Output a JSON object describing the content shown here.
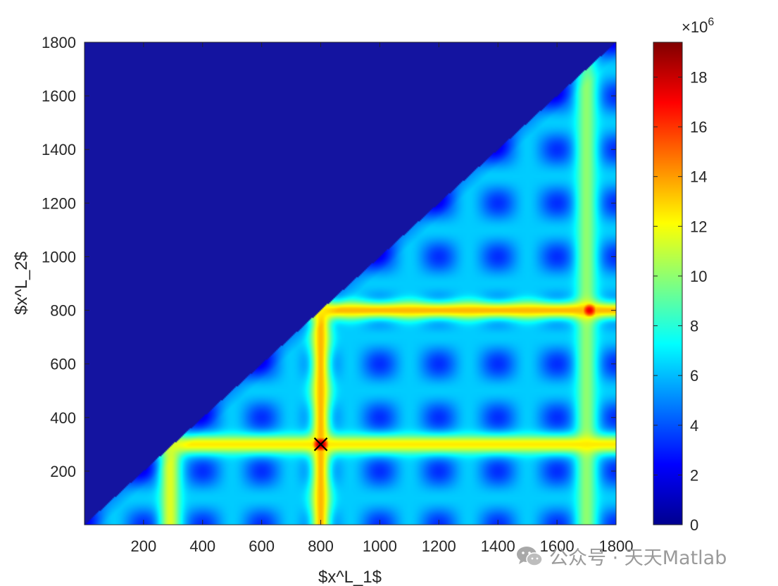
{
  "chart_data": {
    "type": "heatmap",
    "title": "",
    "xlabel": "$x^L_1$",
    "ylabel": "$x^L_2$",
    "xlim": [
      0,
      1800
    ],
    "ylim": [
      0,
      1800
    ],
    "x_ticks": [
      200,
      400,
      600,
      800,
      1000,
      1200,
      1400,
      1600,
      1800
    ],
    "y_ticks": [
      200,
      400,
      600,
      800,
      1000,
      1200,
      1400,
      1600,
      1800
    ],
    "colormap": "jet",
    "colorbar": {
      "range": [
        0,
        19.4
      ],
      "ticks": [
        0,
        2,
        4,
        6,
        8,
        10,
        12,
        14,
        16,
        18
      ],
      "multiplier_base": "×10",
      "multiplier_exponent": "6"
    },
    "masked_region": "x1 < x2 (constant 0)",
    "ridges": [
      {
        "orientation": "vertical",
        "x": 290,
        "value": 11.5
      },
      {
        "orientation": "vertical",
        "x": 800,
        "value": 13.5
      },
      {
        "orientation": "vertical",
        "x": 1700,
        "value": 10
      },
      {
        "orientation": "horizontal",
        "y": 300,
        "value": 12.5
      },
      {
        "orientation": "horizontal",
        "y": 800,
        "value": 13.5
      }
    ],
    "hot_spots": [
      {
        "x": 800,
        "y": 300,
        "value": 19
      },
      {
        "x": 1710,
        "y": 800,
        "value": 17.5
      }
    ],
    "marker": {
      "symbol": "x",
      "x": 800,
      "y": 300
    }
  },
  "watermark": {
    "icon": "wechat-icon",
    "text": "公众号 · 天天Matlab"
  }
}
